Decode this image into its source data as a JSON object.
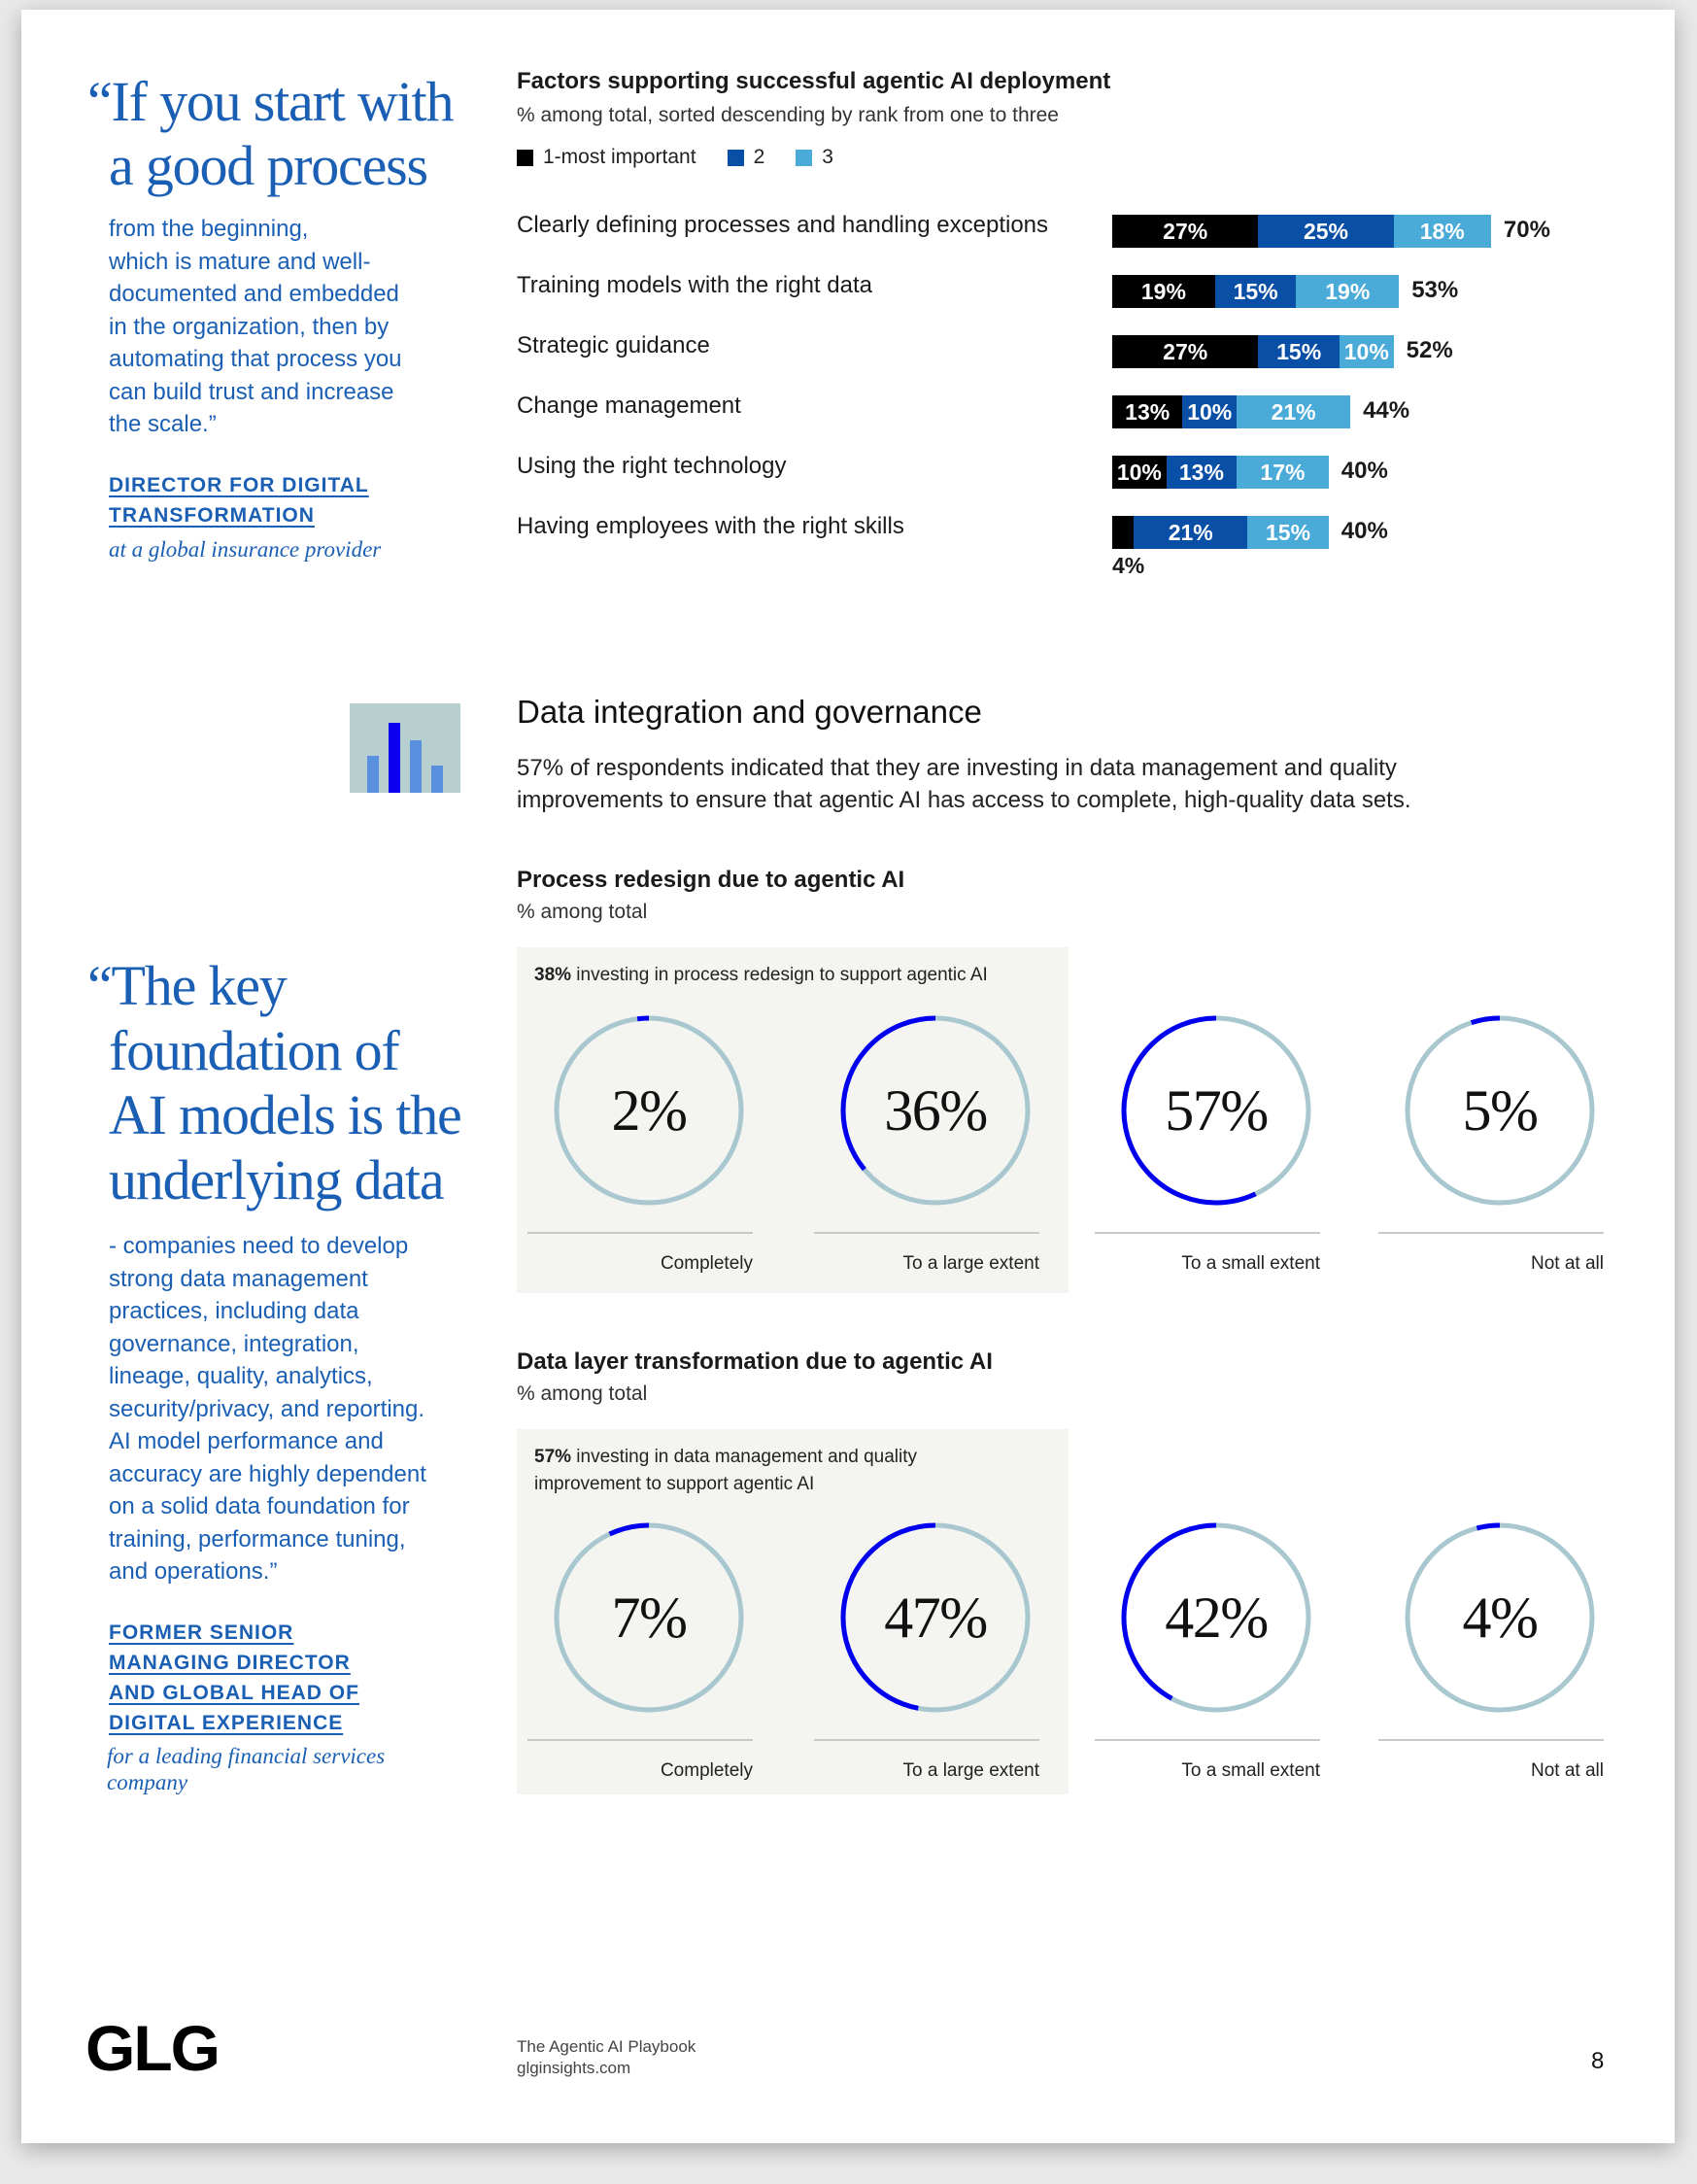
{
  "quote1": {
    "headline_lines": [
      "“If you start with",
      "a good process"
    ],
    "body_lines": [
      "from the beginning,",
      "which is mature and well-",
      "documented and embedded",
      "in the organization, then by",
      "automating that process you",
      "can build trust and increase",
      "the scale.”"
    ],
    "attribution_lines": [
      "DIRECTOR FOR DIGITAL",
      "TRANSFORMATION"
    ],
    "attribution_sub_lines": [
      "at a global insurance provider"
    ]
  },
  "quote2": {
    "headline_lines": [
      "“The key",
      "foundation of",
      "AI models is the",
      "underlying data"
    ],
    "body_lines": [
      "- companies need to develop",
      "strong data management",
      "practices, including data",
      "governance, integration,",
      "lineage, quality, analytics,",
      "security/privacy, and reporting.",
      "AI model performance and",
      "accuracy are highly dependent",
      "on a solid data foundation for",
      "training, performance tuning,",
      "and operations.”"
    ],
    "attribution_lines": [
      "FORMER SENIOR",
      "MANAGING DIRECTOR",
      "AND GLOBAL HEAD OF",
      "DIGITAL EXPERIENCE"
    ],
    "attribution_sub_lines": [
      "for a leading financial services",
      "company"
    ]
  },
  "factors_chart": {
    "title": "Factors supporting successful agentic AI deployment",
    "subtitle": "% among total, sorted descending by rank from one to three",
    "legend": [
      "1-most important",
      "2",
      "3"
    ],
    "colors": [
      "#000000",
      "#0a4fa6",
      "#4aaad8"
    ]
  },
  "chart_data": [
    {
      "type": "bar",
      "orientation": "horizontal",
      "stacked": true,
      "title": "Factors supporting successful agentic AI deployment",
      "subtitle": "% among total, sorted descending by rank from one to three",
      "categories": [
        "Clearly defining processes and handling exceptions",
        "Training models with the right data",
        "Strategic guidance",
        "Change management",
        "Using the right technology",
        "Having employees with the right skills"
      ],
      "series": [
        {
          "name": "1-most important",
          "values": [
            27,
            19,
            27,
            13,
            10,
            4
          ]
        },
        {
          "name": "2",
          "values": [
            25,
            15,
            15,
            10,
            13,
            21
          ]
        },
        {
          "name": "3",
          "values": [
            18,
            19,
            10,
            21,
            17,
            15
          ]
        }
      ],
      "totals": [
        70,
        53,
        52,
        44,
        40,
        40
      ],
      "segment_labels": [
        [
          "27%",
          "25%",
          "18%"
        ],
        [
          "19%",
          "15%",
          "19%"
        ],
        [
          "27%",
          "15%",
          "10%"
        ],
        [
          "13%",
          "10%",
          "21%"
        ],
        [
          "10%",
          "13%",
          "17%"
        ],
        [
          "4%",
          "21%",
          "15%"
        ]
      ],
      "total_labels": [
        "70%",
        "53%",
        "52%",
        "44%",
        "40%",
        "40%"
      ],
      "legend_position": "top-left"
    },
    {
      "type": "pie",
      "title": "Process redesign due to agentic AI",
      "subtitle": "% among total",
      "categories": [
        "Completely",
        "To a large extent",
        "To a small extent",
        "Not at all"
      ],
      "values": [
        2,
        36,
        57,
        5
      ],
      "labels": [
        "2%",
        "36%",
        "57%",
        "5%"
      ],
      "highlight": "38% investing in process redesign to support agentic AI"
    },
    {
      "type": "pie",
      "title": "Data layer transformation due to agentic AI",
      "subtitle": "% among total",
      "categories": [
        "Completely",
        "To a large extent",
        "To a small extent",
        "Not at all"
      ],
      "values": [
        7,
        47,
        42,
        4
      ],
      "labels": [
        "7%",
        "47%",
        "42%",
        "4%"
      ],
      "highlight": "57% investing in data management and quality improvement to support agentic AI"
    }
  ],
  "section": {
    "title": "Data integration and governance",
    "body_lines": [
      "57% of respondents indicated that they are investing in data management and quality",
      "improvements to ensure that agentic AI has access to complete, high-quality data sets."
    ],
    "icon": "bar-chart-icon"
  },
  "process_chart": {
    "title": "Process redesign due to agentic AI",
    "subtitle": "% among total",
    "note_bold": "38%",
    "note_lines": [
      " investing in process redesign to support agentic AI"
    ]
  },
  "data_chart": {
    "title": "Data layer transformation due to agentic AI",
    "subtitle": "% among total",
    "note_bold": "57%",
    "note_lines": [
      " investing in data management and quality",
      "improvement to support agentic AI"
    ]
  },
  "donut_colors": {
    "ring": "#a9c7cf",
    "arc": "#0000ee"
  },
  "footer": {
    "logo": "GLG",
    "publication": "The Agentic AI Playbook",
    "website": "glginsights.com",
    "page_number": "8"
  }
}
